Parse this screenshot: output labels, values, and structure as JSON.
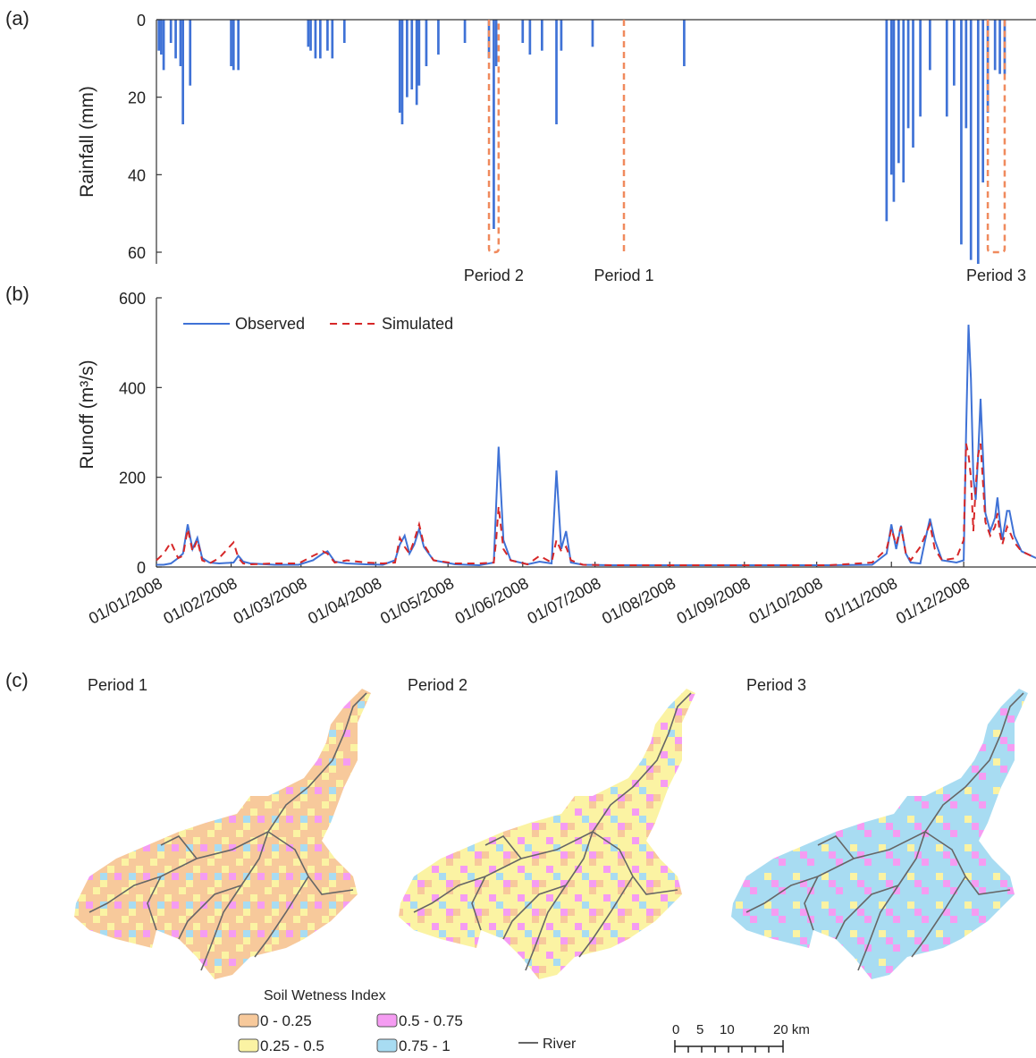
{
  "panel_labels": [
    "(a)",
    "(b)",
    "(c)"
  ],
  "chart_data": [
    {
      "type": "bar",
      "ylabel": "Rainfall (mm)",
      "color": "#3f72d6",
      "inverted": true,
      "x": [
        2,
        3,
        4,
        7,
        9,
        11,
        12,
        15,
        32,
        33,
        35,
        64,
        65,
        67,
        69,
        72,
        74,
        79,
        102,
        103,
        105,
        107,
        109,
        110,
        113,
        118,
        129,
        139,
        141,
        142,
        153,
        156,
        161,
        167,
        169,
        182,
        220,
        304,
        306,
        307,
        309,
        311,
        313,
        315,
        318,
        322,
        329,
        332,
        335,
        337,
        339,
        342,
        344,
        346,
        349,
        351,
        353
      ],
      "values": [
        8,
        9,
        13,
        6,
        10,
        12,
        27,
        17,
        12,
        13,
        13,
        7,
        8,
        10,
        10,
        8,
        10,
        6,
        24,
        27,
        20,
        18,
        22,
        17,
        12,
        9,
        6,
        10,
        54,
        12,
        6,
        9,
        8,
        27,
        8,
        7,
        12,
        52,
        40,
        47,
        37,
        42,
        28,
        33,
        25,
        13,
        25,
        17,
        58,
        28,
        62,
        63,
        42,
        24,
        13,
        14,
        14
      ],
      "xlim": [
        1,
        366
      ],
      "ylim": [
        0,
        63
      ],
      "yticks": [
        0,
        20,
        40,
        60
      ],
      "period_color": "#f08a5d",
      "periods": [
        {
          "label": "Period 2",
          "x": [
            139,
            143
          ],
          "y": 60
        },
        {
          "label": "Period 1",
          "x": [
            195,
            195
          ],
          "y": 60
        },
        {
          "label": "Period 3",
          "x": [
            346,
            353
          ],
          "y": 60
        }
      ]
    },
    {
      "type": "line",
      "ylabel": "Runoff (m³/s)",
      "legend": "upper left",
      "x": [
        1,
        4,
        7,
        10,
        12,
        14,
        16,
        18,
        20,
        23,
        27,
        33,
        35,
        37,
        40,
        50,
        60,
        66,
        70,
        72,
        75,
        80,
        88,
        95,
        100,
        102,
        104,
        106,
        108,
        110,
        112,
        116,
        125,
        135,
        141,
        142,
        143,
        145,
        148,
        155,
        160,
        165,
        167,
        169,
        171,
        173,
        178,
        190,
        220,
        250,
        280,
        298,
        304,
        306,
        308,
        310,
        312,
        314,
        318,
        320,
        322,
        324,
        327,
        333,
        336,
        337,
        338,
        339,
        340,
        341,
        342,
        343,
        345,
        347,
        349,
        350,
        351,
        352,
        354,
        355,
        357,
        360,
        366
      ],
      "series": [
        {
          "name": "Observed",
          "color": "#3f72d6",
          "dash": false,
          "values": [
            5,
            5,
            8,
            20,
            30,
            95,
            40,
            65,
            20,
            10,
            8,
            10,
            25,
            12,
            8,
            5,
            5,
            15,
            30,
            35,
            12,
            8,
            6,
            5,
            15,
            50,
            70,
            30,
            50,
            85,
            45,
            15,
            6,
            4,
            10,
            140,
            268,
            60,
            15,
            6,
            12,
            8,
            215,
            40,
            80,
            10,
            5,
            4,
            4,
            4,
            4,
            5,
            30,
            95,
            40,
            92,
            30,
            10,
            8,
            60,
            108,
            60,
            15,
            10,
            15,
            300,
            540,
            420,
            200,
            150,
            250,
            375,
            120,
            80,
            110,
            155,
            100,
            60,
            125,
            125,
            70,
            35,
            20
          ]
        },
        {
          "name": "Simulated",
          "color": "#d62728",
          "dash": true,
          "values": [
            15,
            30,
            55,
            20,
            25,
            85,
            35,
            60,
            15,
            8,
            20,
            55,
            20,
            8,
            6,
            8,
            8,
            25,
            35,
            30,
            10,
            15,
            10,
            8,
            10,
            65,
            45,
            30,
            60,
            95,
            50,
            15,
            8,
            8,
            10,
            60,
            135,
            40,
            15,
            6,
            25,
            10,
            60,
            35,
            45,
            15,
            5,
            4,
            4,
            4,
            4,
            10,
            40,
            85,
            50,
            90,
            30,
            15,
            45,
            70,
            95,
            40,
            15,
            20,
            60,
            275,
            250,
            200,
            80,
            180,
            250,
            275,
            100,
            70,
            90,
            120,
            75,
            50,
            90,
            80,
            55,
            35,
            20
          ]
        }
      ],
      "xlim": [
        1,
        366
      ],
      "ylim": [
        0,
        600
      ],
      "yticks": [
        0,
        200,
        400,
        600
      ],
      "xticks": [
        {
          "value": 1,
          "label": "01/01/2008"
        },
        {
          "value": 32,
          "label": "01/02/2008"
        },
        {
          "value": 61,
          "label": "01/03/2008"
        },
        {
          "value": 92,
          "label": "01/04/2008"
        },
        {
          "value": 122,
          "label": "01/05/2008"
        },
        {
          "value": 153,
          "label": "01/06/2008"
        },
        {
          "value": 183,
          "label": "01/07/2008"
        },
        {
          "value": 214,
          "label": "01/08/2008"
        },
        {
          "value": 245,
          "label": "01/09/2008"
        },
        {
          "value": 275,
          "label": "01/10/2008"
        },
        {
          "value": 306,
          "label": "01/11/2008"
        },
        {
          "value": 336,
          "label": "01/12/2008"
        }
      ]
    }
  ],
  "maps": {
    "titles": [
      "Period 1",
      "Period 2",
      "Period 3"
    ],
    "legend_title": "Soil Wetness Index",
    "legend_items": [
      {
        "label": "0 - 0.25",
        "color": "#f7c99b"
      },
      {
        "label": "0.25 - 0.5",
        "color": "#fbf3a3"
      },
      {
        "label": "0.5 - 0.75",
        "color": "#f59cf2"
      },
      {
        "label": "0.75 - 1",
        "color": "#a8dcf2"
      }
    ],
    "river_label": "River",
    "scale_labels": [
      "0",
      "5",
      "10",
      "20 km"
    ]
  }
}
